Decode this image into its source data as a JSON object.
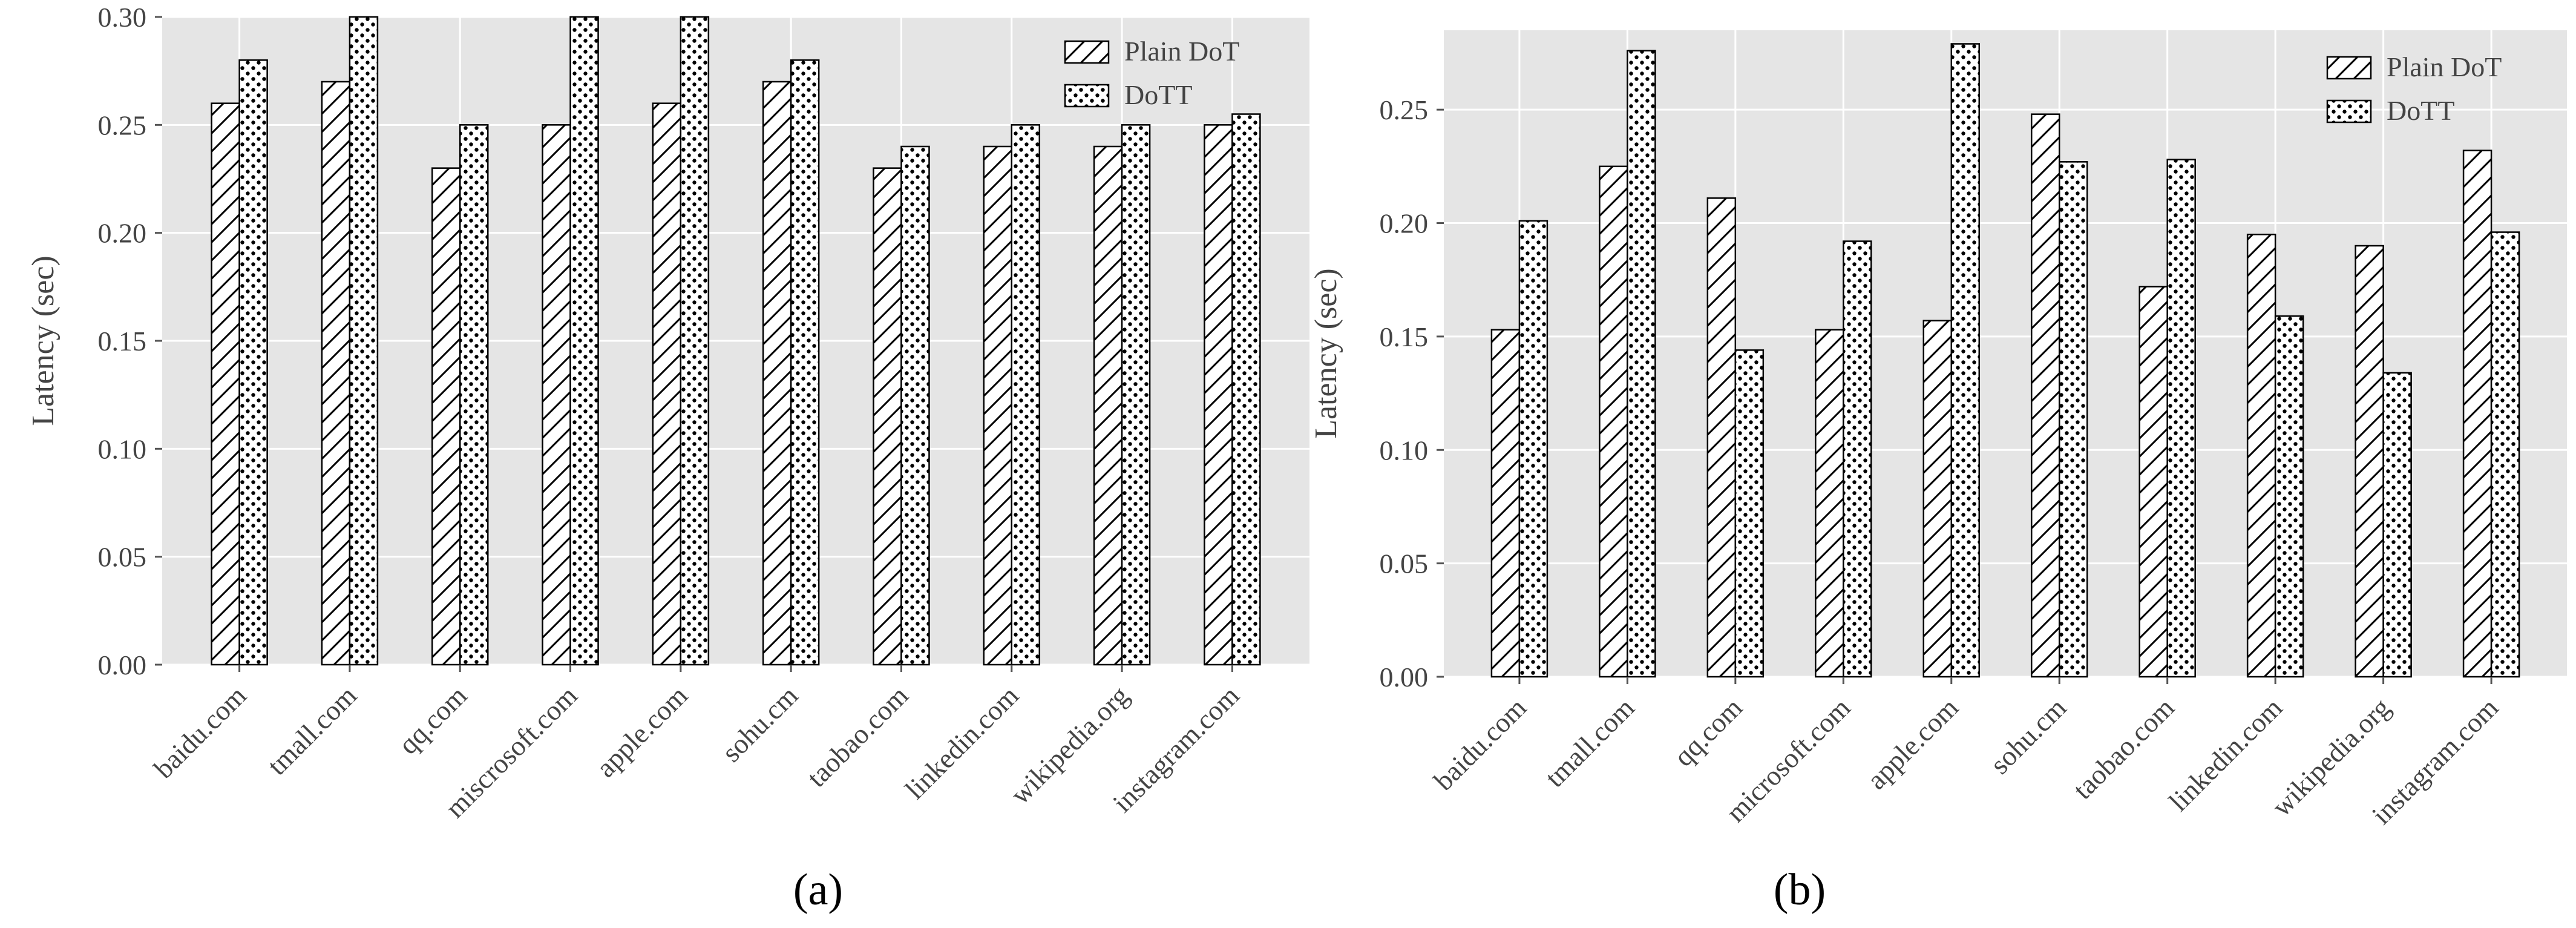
{
  "figure": {
    "panel_labels": [
      "(a)",
      "(b)"
    ],
    "colors": {
      "plot_background": "#e5e5e5",
      "gridline": "#ffffff",
      "bar_edge": "#000000",
      "bar_fill": "#ffffff",
      "tick_text": "#444444",
      "tick_mark": "#555555"
    }
  },
  "chart_data": [
    {
      "type": "bar",
      "panel": "(a)",
      "title": "",
      "xlabel": "",
      "ylabel": "Latency (sec)",
      "ylim": [
        0,
        0.3
      ],
      "yticks": [
        "0.00",
        "0.05",
        "0.10",
        "0.15",
        "0.20",
        "0.25",
        "0.30"
      ],
      "ytick_values": [
        0,
        0.05,
        0.1,
        0.15,
        0.2,
        0.25,
        0.3
      ],
      "categories": [
        "baidu.com",
        "tmall.com",
        "qq.com",
        "miscrosoft.com",
        "apple.com",
        "sohu.cm",
        "taobao.com",
        "linkedin.com",
        "wikipedia.org",
        "instagram.com"
      ],
      "grid": true,
      "legend_position": "top-right",
      "series": [
        {
          "name": "Plain DoT",
          "hatch": "diagonal",
          "values": [
            0.26,
            0.27,
            0.23,
            0.25,
            0.26,
            0.27,
            0.23,
            0.24,
            0.24,
            0.25
          ]
        },
        {
          "name": "DoTT",
          "hatch": "dots",
          "values": [
            0.28,
            0.3,
            0.25,
            0.3,
            0.3,
            0.28,
            0.24,
            0.25,
            0.25,
            0.255
          ]
        }
      ]
    },
    {
      "type": "bar",
      "panel": "(b)",
      "title": "",
      "xlabel": "",
      "ylabel": "Latency (sec)",
      "ylim": [
        0,
        0.285
      ],
      "yticks": [
        "0.00",
        "0.05",
        "0.10",
        "0.15",
        "0.20",
        "0.25"
      ],
      "ytick_values": [
        0,
        0.05,
        0.1,
        0.15,
        0.2,
        0.25
      ],
      "categories": [
        "baidu.com",
        "tmall.com",
        "qq.com",
        "microsoft.com",
        "apple.com",
        "sohu.cm",
        "taobao.com",
        "linkedin.com",
        "wikipedia.org",
        "instagram.com"
      ],
      "grid": true,
      "legend_position": "top-right",
      "series": [
        {
          "name": "Plain DoT",
          "hatch": "diagonal",
          "values": [
            0.153,
            0.225,
            0.211,
            0.153,
            0.157,
            0.248,
            0.172,
            0.195,
            0.19,
            0.232
          ]
        },
        {
          "name": "DoTT",
          "hatch": "dots",
          "values": [
            0.201,
            0.276,
            0.144,
            0.192,
            0.279,
            0.227,
            0.228,
            0.159,
            0.134,
            0.196
          ]
        }
      ]
    }
  ]
}
